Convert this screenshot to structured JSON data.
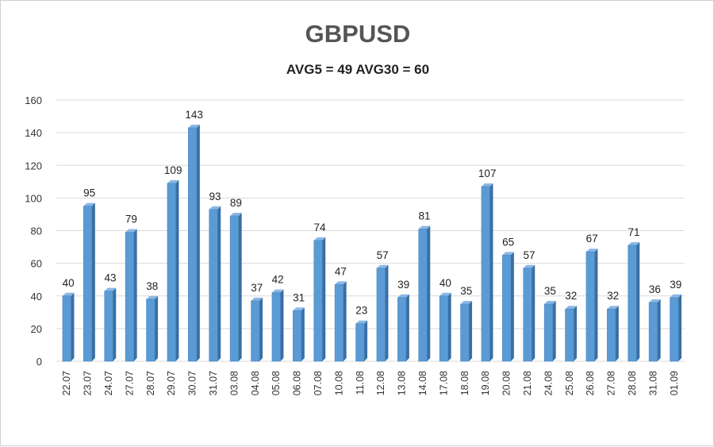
{
  "chart_data": {
    "type": "bar",
    "title": "GBPUSD",
    "subtitle": "AVG5 = 49 AVG30 = 60",
    "categories": [
      "22.07",
      "23.07",
      "24.07",
      "27.07",
      "28.07",
      "29.07",
      "30.07",
      "31.07",
      "03.08",
      "04.08",
      "05.08",
      "06.08",
      "07.08",
      "10.08",
      "11.08",
      "12.08",
      "13.08",
      "14.08",
      "17.08",
      "18.08",
      "19.08",
      "20.08",
      "21.08",
      "24.08",
      "25.08",
      "26.08",
      "27.08",
      "28.08",
      "31.08",
      "01.09"
    ],
    "values": [
      40,
      95,
      43,
      79,
      38,
      109,
      143,
      93,
      89,
      37,
      42,
      31,
      74,
      47,
      23,
      57,
      39,
      81,
      40,
      35,
      107,
      65,
      57,
      35,
      32,
      67,
      32,
      71,
      36,
      39
    ],
    "ylim": [
      0,
      160
    ],
    "yticks": [
      0,
      20,
      40,
      60,
      80,
      100,
      120,
      140,
      160
    ],
    "grid": true,
    "data_labels": true,
    "colors": {
      "bar_front": "#5b9bd5",
      "bar_side": "#3a6fa3",
      "bar_top": "#8ab8e6",
      "grid": "#d9d9d9"
    }
  }
}
